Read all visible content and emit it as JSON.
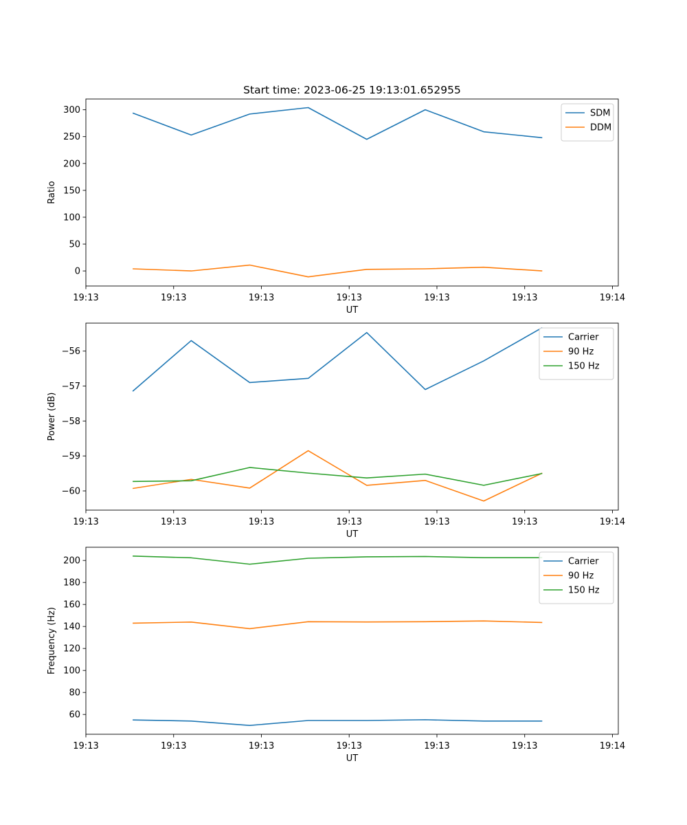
{
  "chart_data": [
    {
      "type": "line",
      "title": "Start time: 2023-06-25 19:13:01.652955",
      "xlabel": "UT",
      "ylabel": "Ratio",
      "x": [
        1,
        2,
        3,
        4,
        5,
        6,
        7,
        8
      ],
      "xlim": [
        0.2,
        9.3
      ],
      "xticks": [
        0.2,
        1.7,
        3.2,
        4.7,
        6.2,
        7.7,
        9.2
      ],
      "xtick_labels": [
        "19:13",
        "19:13",
        "19:13",
        "19:13",
        "19:13",
        "19:13",
        "19:14"
      ],
      "ylim": [
        -28,
        320
      ],
      "yticks": [
        0,
        50,
        100,
        150,
        200,
        250,
        300
      ],
      "ytick_labels": [
        "0",
        "50",
        "100",
        "150",
        "200",
        "250",
        "300"
      ],
      "grid": false,
      "legend_position": "top-right",
      "series": [
        {
          "name": "SDM",
          "color": "#1f77b4",
          "values": [
            294,
            253,
            292,
            304,
            245,
            300,
            259,
            248
          ]
        },
        {
          "name": "DDM",
          "color": "#ff7f0e",
          "values": [
            4,
            0,
            11,
            -11,
            3,
            4,
            7,
            0
          ]
        }
      ]
    },
    {
      "type": "line",
      "title": "",
      "xlabel": "UT",
      "ylabel": "Power (dB)",
      "x": [
        1,
        2,
        3,
        4,
        5,
        6,
        7,
        8
      ],
      "xlim": [
        0.2,
        9.3
      ],
      "xticks": [
        0.2,
        1.7,
        3.2,
        4.7,
        6.2,
        7.7,
        9.2
      ],
      "xtick_labels": [
        "19:13",
        "19:13",
        "19:13",
        "19:13",
        "19:13",
        "19:13",
        "19:14"
      ],
      "ylim": [
        -60.55,
        -55.2
      ],
      "yticks": [
        -60,
        -59,
        -58,
        -57,
        -56
      ],
      "ytick_labels": [
        "−60",
        "−59",
        "−58",
        "−57",
        "−56"
      ],
      "grid": false,
      "legend_position": "top-right",
      "series": [
        {
          "name": "Carrier",
          "color": "#1f77b4",
          "values": [
            -57.15,
            -55.7,
            -56.9,
            -56.78,
            -55.47,
            -57.1,
            -56.28,
            -55.33
          ]
        },
        {
          "name": "90 Hz",
          "color": "#ff7f0e",
          "values": [
            -59.93,
            -59.67,
            -59.92,
            -58.85,
            -59.84,
            -59.7,
            -60.29,
            -59.49
          ]
        },
        {
          "name": "150 Hz",
          "color": "#2ca02c",
          "values": [
            -59.73,
            -59.71,
            -59.33,
            -59.49,
            -59.63,
            -59.52,
            -59.84,
            -59.5
          ]
        }
      ]
    },
    {
      "type": "line",
      "title": "",
      "xlabel": "UT",
      "ylabel": "Frequency (Hz)",
      "x": [
        1,
        2,
        3,
        4,
        5,
        6,
        7,
        8
      ],
      "xlim": [
        0.2,
        9.3
      ],
      "xticks": [
        0.2,
        1.7,
        3.2,
        4.7,
        6.2,
        7.7,
        9.2
      ],
      "xtick_labels": [
        "19:13",
        "19:13",
        "19:13",
        "19:13",
        "19:13",
        "19:13",
        "19:14"
      ],
      "ylim": [
        42,
        212
      ],
      "yticks": [
        60,
        80,
        100,
        120,
        140,
        160,
        180,
        200
      ],
      "ytick_labels": [
        "60",
        "80",
        "100",
        "120",
        "140",
        "160",
        "180",
        "200"
      ],
      "grid": false,
      "legend_position": "top-right",
      "series": [
        {
          "name": "Carrier",
          "color": "#1f77b4",
          "values": [
            55,
            54,
            50,
            54.5,
            54.5,
            55.2,
            54,
            54
          ]
        },
        {
          "name": "90 Hz",
          "color": "#ff7f0e",
          "values": [
            143,
            144,
            138,
            144.3,
            144.1,
            144.3,
            145,
            143.6
          ]
        },
        {
          "name": "150 Hz",
          "color": "#2ca02c",
          "values": [
            204,
            202.4,
            196.6,
            202,
            203.3,
            203.6,
            202.5,
            202.5
          ]
        }
      ]
    }
  ]
}
